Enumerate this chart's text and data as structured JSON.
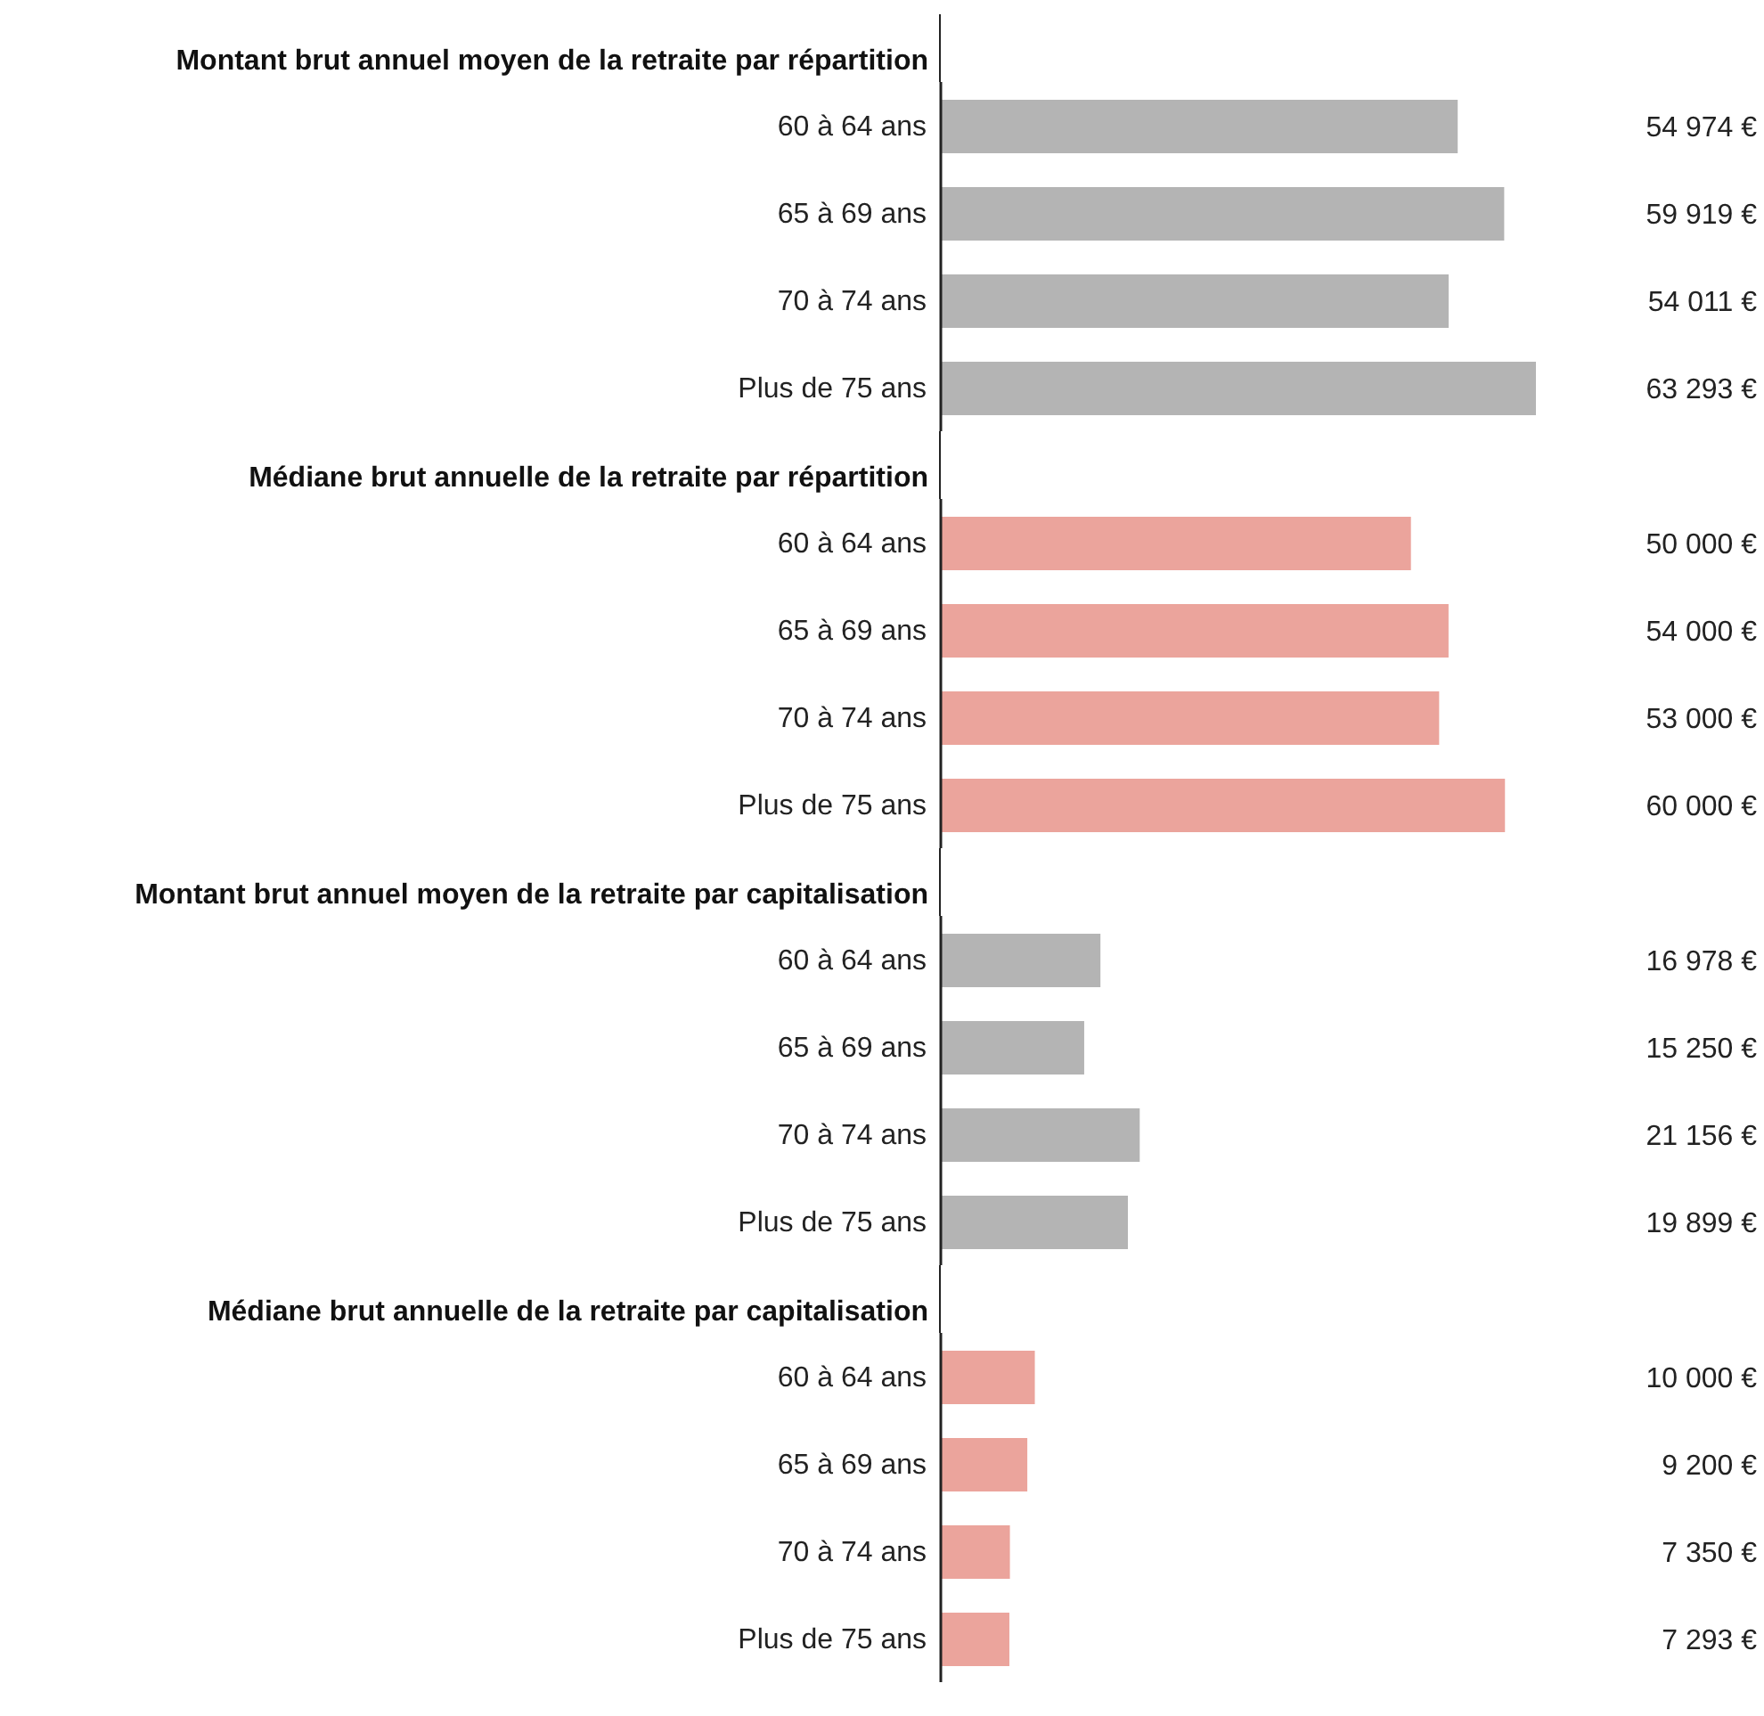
{
  "chart_data": [
    {
      "type": "bar",
      "orientation": "horizontal",
      "title": "Montant brut annuel moyen de la retraite par répartition",
      "categories": [
        "60 à 64 ans",
        "65 à 69 ans",
        "70 à 74 ans",
        "Plus de 75 ans"
      ],
      "values": [
        54974,
        59919,
        54011,
        63293
      ],
      "color": "#b4b4b4",
      "value_labels": [
        "54 974 €",
        "59 919 €",
        "54 011 €",
        "63 293 €"
      ]
    },
    {
      "type": "bar",
      "orientation": "horizontal",
      "title": "Médiane brut annuelle de la retraite par répartition",
      "categories": [
        "60 à 64 ans",
        "65 à 69 ans",
        "70 à 74 ans",
        "Plus de 75 ans"
      ],
      "values": [
        50000,
        54000,
        53000,
        60000
      ],
      "color": "#eba49c",
      "value_labels": [
        "50 000 €",
        "54 000 €",
        "53 000 €",
        "60 000 €"
      ]
    },
    {
      "type": "bar",
      "orientation": "horizontal",
      "title": "Montant brut annuel moyen de la retraite par capitalisation",
      "categories": [
        "60 à 64 ans",
        "65 à 69 ans",
        "70 à 74 ans",
        "Plus de 75 ans"
      ],
      "values": [
        16978,
        15250,
        21156,
        19899
      ],
      "color": "#b4b4b4",
      "value_labels": [
        "16 978 €",
        "15 250 €",
        "21 156 €",
        "19 899 €"
      ]
    },
    {
      "type": "bar",
      "orientation": "horizontal",
      "title": "Médiane brut annuelle de la retraite par capitalisation",
      "categories": [
        "60 à 64 ans",
        "65 à 69 ans",
        "70 à 74 ans",
        "Plus de 75 ans"
      ],
      "values": [
        10000,
        9200,
        7350,
        7293
      ],
      "color": "#eba49c",
      "value_labels": [
        "10 000 €",
        "9 200 €",
        "7 350 €",
        "7 293 €"
      ]
    }
  ]
}
